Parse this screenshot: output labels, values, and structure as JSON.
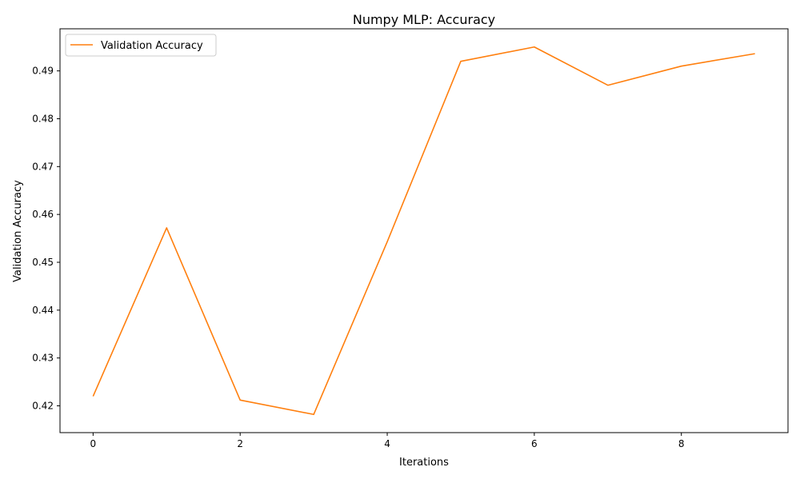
{
  "chart_data": {
    "type": "line",
    "title": "Numpy MLP: Accuracy",
    "xlabel": "Iterations",
    "ylabel": "Validation Accuracy",
    "xlim": [
      -0.45,
      9.45
    ],
    "ylim": [
      0.4144,
      0.4988
    ],
    "x_ticks": [
      0,
      2,
      4,
      6,
      8
    ],
    "x_tick_labels": [
      "0",
      "2",
      "4",
      "6",
      "8"
    ],
    "y_ticks": [
      0.42,
      0.43,
      0.44,
      0.45,
      0.46,
      0.47,
      0.48,
      0.49
    ],
    "y_tick_labels": [
      "0.42",
      "0.43",
      "0.44",
      "0.45",
      "0.46",
      "0.47",
      "0.48",
      "0.49"
    ],
    "grid": false,
    "legend_position": "upper-left",
    "series": [
      {
        "name": "Validation Accuracy",
        "color": "#ff7f0e",
        "x": [
          0,
          1,
          2,
          3,
          4,
          5,
          6,
          7,
          8,
          9
        ],
        "values": [
          0.422,
          0.4572,
          0.4212,
          0.4182,
          0.4543,
          0.492,
          0.495,
          0.487,
          0.491,
          0.4936
        ]
      }
    ]
  }
}
